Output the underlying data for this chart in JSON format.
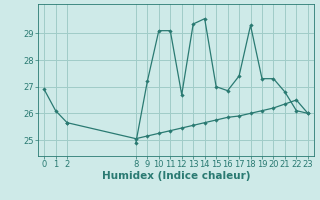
{
  "xlabel": "Humidex (Indice chaleur)",
  "bg_color": "#ceeae8",
  "line_color": "#2a7a72",
  "grid_color": "#a0ccc8",
  "line1_x": [
    0,
    1,
    2,
    8,
    9,
    10,
    11,
    12,
    13,
    14,
    15,
    16,
    17,
    18,
    19,
    20,
    21,
    22,
    23
  ],
  "line1_y": [
    26.9,
    26.1,
    25.65,
    24.9,
    27.2,
    29.1,
    29.1,
    26.7,
    29.35,
    29.55,
    27.0,
    26.85,
    27.4,
    29.3,
    27.3,
    27.3,
    26.8,
    26.1,
    26.0
  ],
  "line2_x": [
    2,
    8,
    9,
    10,
    11,
    12,
    13,
    14,
    15,
    16,
    17,
    18,
    19,
    20,
    21,
    22,
    23
  ],
  "line2_y": [
    25.65,
    25.05,
    25.15,
    25.25,
    25.35,
    25.45,
    25.55,
    25.65,
    25.75,
    25.85,
    25.9,
    26.0,
    26.1,
    26.2,
    26.35,
    26.5,
    26.0
  ],
  "xticks": [
    0,
    1,
    2,
    8,
    9,
    10,
    11,
    12,
    13,
    14,
    15,
    16,
    17,
    18,
    19,
    20,
    21,
    22,
    23
  ],
  "yticks": [
    25,
    26,
    27,
    28,
    29
  ],
  "ylim": [
    24.4,
    30.1
  ],
  "xlim": [
    -0.5,
    23.5
  ],
  "xlabel_fontsize": 7.5,
  "tick_fontsize": 6.0,
  "line_width": 0.9,
  "marker_size": 2.2
}
